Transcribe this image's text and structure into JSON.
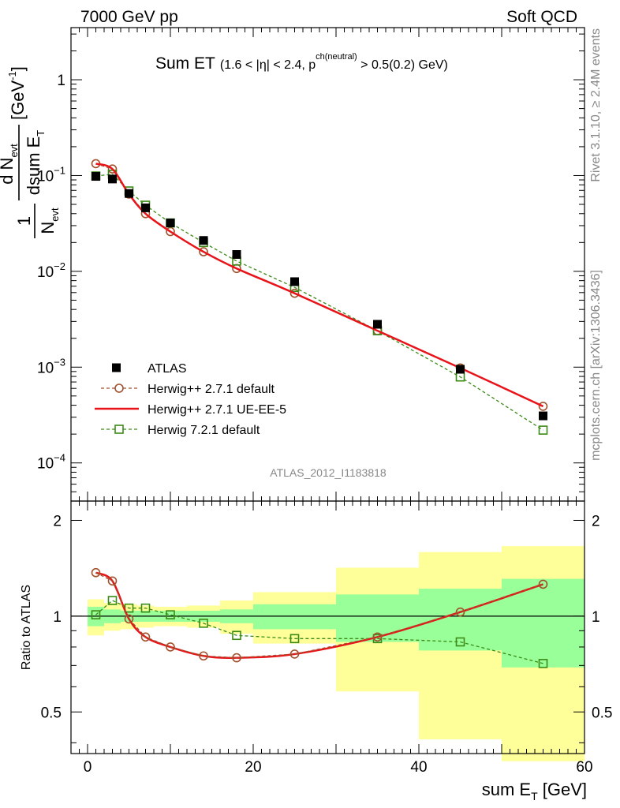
{
  "header": {
    "left": "7000 GeV pp",
    "right": "Soft QCD"
  },
  "side_text": {
    "rivet": "Rivet 3.1.10, ≥ 2.4M events",
    "mcplots": "mcplots.cern.ch [arXiv:1306.3436]"
  },
  "watermark": "ATLAS_2012_I1183818",
  "chart_data": [
    {
      "panel": "main",
      "type": "line",
      "title": "Sum ET",
      "title_detail": "(1.6 < |η| < 2.4, p",
      "title_sup": "ch(neutral)",
      "title_tail": " > 0.5(0.2) GeV)",
      "xlabel": "sum E_T [GeV]",
      "ylabel": "1/N_evt dN_evt/dsumE_T [GeV^-1]",
      "xlim": [
        -2,
        60
      ],
      "ylim": [
        4e-05,
        3.5
      ],
      "yscale": "log",
      "y_ticks": [
        {
          "value": 1,
          "base": "1",
          "exp": ""
        },
        {
          "value": 0.1,
          "base": "10",
          "exp": "−1"
        },
        {
          "value": 0.01,
          "base": "10",
          "exp": "−2"
        },
        {
          "value": 0.001,
          "base": "10",
          "exp": "−3"
        },
        {
          "value": 0.0001,
          "base": "10",
          "exp": "−4"
        }
      ],
      "legend_position": "bottom-left",
      "series": [
        {
          "name": "ATLAS",
          "style": "data",
          "color": "#000000",
          "x": [
            1,
            3,
            5,
            7,
            10,
            14,
            18,
            25,
            35,
            45,
            55
          ],
          "y": [
            0.098,
            0.092,
            0.065,
            0.046,
            0.032,
            0.021,
            0.015,
            0.0078,
            0.0028,
            0.00095,
            0.00031
          ]
        },
        {
          "name": "Herwig++ 2.7.1 default",
          "style": "dashed-circle",
          "color": "#a0522d",
          "x": [
            1,
            3,
            5,
            7,
            10,
            14,
            18,
            25,
            35,
            45,
            55
          ],
          "y": [
            0.133,
            0.117,
            0.064,
            0.04,
            0.026,
            0.016,
            0.0107,
            0.0059,
            0.0024,
            0.00098,
            0.00039
          ]
        },
        {
          "name": "Herwig++ 2.7.1 UE-EE-5",
          "style": "solid",
          "color": "#e8141a",
          "x": [
            1,
            3,
            5,
            7,
            10,
            14,
            18,
            25,
            35,
            45,
            55
          ],
          "y": [
            0.133,
            0.117,
            0.064,
            0.04,
            0.026,
            0.016,
            0.0107,
            0.0059,
            0.0024,
            0.00098,
            0.00039
          ]
        },
        {
          "name": "Herwig 7.2.1 default",
          "style": "dashed-square",
          "color": "#3b8a16",
          "x": [
            1,
            3,
            5,
            7,
            10,
            14,
            18,
            25,
            35,
            45,
            55
          ],
          "y": [
            0.099,
            0.103,
            0.069,
            0.049,
            0.032,
            0.02,
            0.0128,
            0.0068,
            0.0024,
            0.00079,
            0.00022
          ]
        }
      ]
    },
    {
      "panel": "ratio",
      "type": "line",
      "ylabel": "Ratio to ATLAS",
      "xlabel": "sum E_T [GeV]",
      "xlim": [
        -2,
        60
      ],
      "ylim": [
        0.37,
        2.3
      ],
      "yscale": "log",
      "x_ticks": [
        0,
        20,
        40,
        60
      ],
      "y_ticks": [
        0.5,
        1,
        2
      ],
      "bands": [
        {
          "x0": 0,
          "x1": 2,
          "in_lo": 0.93,
          "in_hi": 1.07,
          "out_lo": 0.87,
          "out_hi": 1.13
        },
        {
          "x0": 2,
          "x1": 4,
          "in_lo": 0.95,
          "in_hi": 1.05,
          "out_lo": 0.9,
          "out_hi": 1.1
        },
        {
          "x0": 4,
          "x1": 6,
          "in_lo": 0.96,
          "in_hi": 1.04,
          "out_lo": 0.91,
          "out_hi": 1.09
        },
        {
          "x0": 6,
          "x1": 8,
          "in_lo": 0.96,
          "in_hi": 1.04,
          "out_lo": 0.92,
          "out_hi": 1.08
        },
        {
          "x0": 8,
          "x1": 12,
          "in_lo": 0.96,
          "in_hi": 1.04,
          "out_lo": 0.93,
          "out_hi": 1.07
        },
        {
          "x0": 12,
          "x1": 16,
          "in_lo": 0.96,
          "in_hi": 1.04,
          "out_lo": 0.92,
          "out_hi": 1.08
        },
        {
          "x0": 16,
          "x1": 20,
          "in_lo": 0.95,
          "in_hi": 1.05,
          "out_lo": 0.88,
          "out_hi": 1.12
        },
        {
          "x0": 20,
          "x1": 30,
          "in_lo": 0.91,
          "in_hi": 1.09,
          "out_lo": 0.82,
          "out_hi": 1.19
        },
        {
          "x0": 30,
          "x1": 40,
          "in_lo": 0.83,
          "in_hi": 1.17,
          "out_lo": 0.58,
          "out_hi": 1.42
        },
        {
          "x0": 40,
          "x1": 50,
          "in_lo": 0.78,
          "in_hi": 1.22,
          "out_lo": 0.41,
          "out_hi": 1.59
        },
        {
          "x0": 50,
          "x1": 60,
          "in_lo": 0.69,
          "in_hi": 1.31,
          "out_lo": 0.35,
          "out_hi": 1.66
        }
      ],
      "series": [
        {
          "name": "Herwig++ 2.7.1 default",
          "style": "dashed-circle",
          "color": "#a0522d",
          "x": [
            1,
            3,
            5,
            7,
            10,
            14,
            18,
            25,
            35,
            45,
            55
          ],
          "y": [
            1.37,
            1.29,
            0.98,
            0.86,
            0.8,
            0.75,
            0.74,
            0.76,
            0.86,
            1.03,
            1.26
          ]
        },
        {
          "name": "Herwig++ 2.7.1 UE-EE-5",
          "style": "solid",
          "color": "#e8141a",
          "x": [
            1,
            3,
            5,
            7,
            10,
            14,
            18,
            25,
            35,
            45,
            55
          ],
          "y": [
            1.37,
            1.29,
            0.98,
            0.86,
            0.8,
            0.75,
            0.74,
            0.76,
            0.86,
            1.03,
            1.26
          ]
        },
        {
          "name": "Herwig 7.2.1 default",
          "style": "dashed-square",
          "color": "#3b8a16",
          "x": [
            1,
            3,
            5,
            7,
            10,
            14,
            18,
            25,
            35,
            45,
            55
          ],
          "y": [
            1.01,
            1.12,
            1.06,
            1.06,
            1.01,
            0.95,
            0.87,
            0.85,
            0.85,
            0.83,
            0.71
          ]
        }
      ]
    }
  ]
}
